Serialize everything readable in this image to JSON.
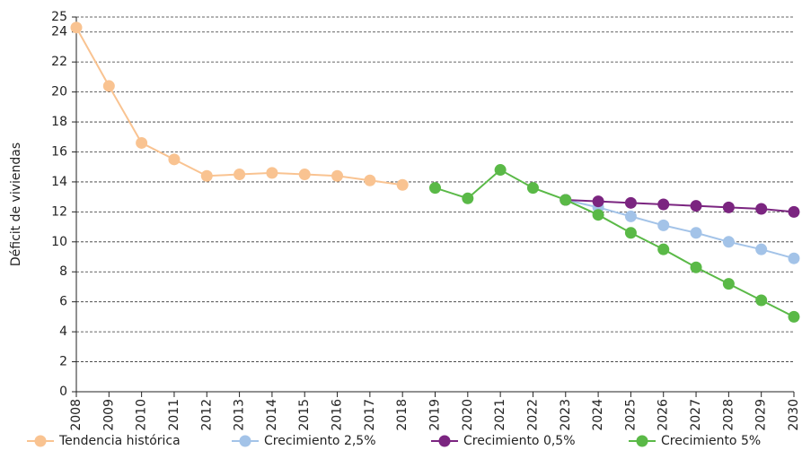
{
  "chart_data": {
    "type": "line",
    "y_label": "Déficit de viviendas",
    "categories": [
      "2008",
      "2009",
      "2010",
      "2011",
      "2012",
      "2013",
      "2014",
      "2015",
      "2016",
      "2017",
      "2018",
      "2019",
      "2020",
      "2021",
      "2022",
      "2023",
      "2024",
      "2025",
      "2026",
      "2027",
      "2028",
      "2029",
      "2030"
    ],
    "series": [
      {
        "name": "Tendencia histórica",
        "color": "#f9c391",
        "values": [
          24.3,
          20.4,
          16.6,
          15.5,
          14.4,
          14.5,
          14.6,
          14.5,
          14.4,
          14.1,
          13.8,
          null,
          null,
          null,
          null,
          null,
          null,
          null,
          null,
          null,
          null,
          null,
          null
        ]
      },
      {
        "name": "Crecimiento 2,5%",
        "color": "#a3c3e8",
        "values": [
          null,
          null,
          null,
          null,
          null,
          null,
          null,
          null,
          null,
          null,
          null,
          null,
          null,
          null,
          null,
          12.8,
          12.3,
          11.7,
          11.1,
          10.6,
          10.0,
          9.5,
          8.9
        ]
      },
      {
        "name": "Crecimiento 0,5%",
        "color": "#7b2580",
        "values": [
          null,
          null,
          null,
          null,
          null,
          null,
          null,
          null,
          null,
          null,
          null,
          null,
          null,
          null,
          null,
          12.8,
          12.7,
          12.6,
          12.5,
          12.4,
          12.3,
          12.2,
          12.0
        ]
      },
      {
        "name": "Crecimiento 5%",
        "color": "#5ab947",
        "values": [
          null,
          null,
          null,
          null,
          null,
          null,
          null,
          null,
          null,
          null,
          null,
          13.6,
          12.9,
          14.8,
          13.6,
          12.8,
          11.8,
          10.6,
          9.5,
          8.3,
          7.2,
          6.1,
          5.0
        ]
      }
    ],
    "ylim": [
      0,
      25
    ],
    "yticks": [
      0,
      2,
      4,
      6,
      8,
      10,
      12,
      14,
      16,
      18,
      20,
      22,
      24,
      25
    ],
    "grid": true
  }
}
